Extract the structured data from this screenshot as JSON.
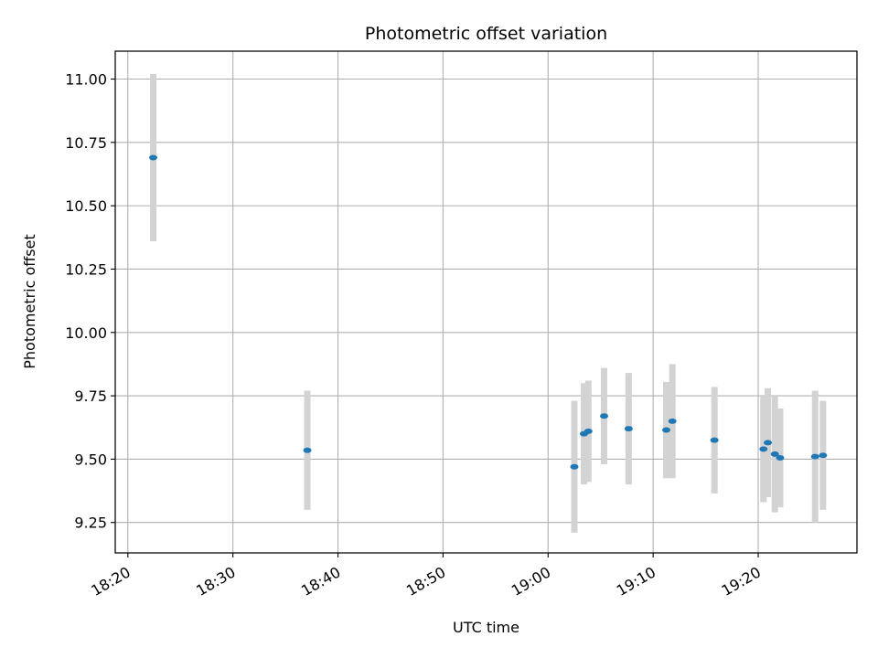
{
  "chart_data": {
    "type": "scatter",
    "title": "Photometric offset variation",
    "xlabel": "UTC time",
    "ylabel": "Photometric offset",
    "x_tick_labels": [
      "18:20",
      "18:30",
      "18:40",
      "18:50",
      "19:00",
      "19:10",
      "19:20"
    ],
    "x_tick_minutes": [
      1100,
      1110,
      1120,
      1130,
      1140,
      1150,
      1160
    ],
    "xlim_minutes": [
      1098.8,
      1169.4
    ],
    "y_ticks": [
      9.25,
      9.5,
      9.75,
      10.0,
      10.25,
      10.5,
      10.75,
      11.0
    ],
    "y_tick_labels": [
      "9.25",
      "9.50",
      "9.75",
      "10.00",
      "10.25",
      "10.50",
      "10.75",
      "11.00"
    ],
    "ylim": [
      9.13,
      11.11
    ],
    "grid": true,
    "series": [
      {
        "marker_color": "#1f77b4",
        "errorbar_color": "#d3d3d3",
        "points": [
          {
            "time": "18:22:25",
            "y": 10.69,
            "yerr": 0.33
          },
          {
            "time": "18:37:05",
            "y": 9.535,
            "yerr": 0.235
          },
          {
            "time": "19:02:30",
            "y": 9.47,
            "yerr": 0.26
          },
          {
            "time": "19:03:25",
            "y": 9.6,
            "yerr": 0.2
          },
          {
            "time": "19:03:50",
            "y": 9.61,
            "yerr": 0.2
          },
          {
            "time": "19:05:20",
            "y": 9.67,
            "yerr": 0.19
          },
          {
            "time": "19:07:40",
            "y": 9.62,
            "yerr": 0.22
          },
          {
            "time": "19:11:15",
            "y": 9.615,
            "yerr": 0.19
          },
          {
            "time": "19:11:50",
            "y": 9.65,
            "yerr": 0.225
          },
          {
            "time": "19:15:50",
            "y": 9.575,
            "yerr": 0.21
          },
          {
            "time": "19:20:30",
            "y": 9.54,
            "yerr": 0.21
          },
          {
            "time": "19:20:55",
            "y": 9.565,
            "yerr": 0.215
          },
          {
            "time": "19:21:35",
            "y": 9.52,
            "yerr": 0.23
          },
          {
            "time": "19:22:05",
            "y": 9.505,
            "yerr": 0.195
          },
          {
            "time": "19:25:25",
            "y": 9.51,
            "yerr": 0.26
          },
          {
            "time": "19:26:10",
            "y": 9.515,
            "yerr": 0.215
          }
        ]
      }
    ]
  }
}
